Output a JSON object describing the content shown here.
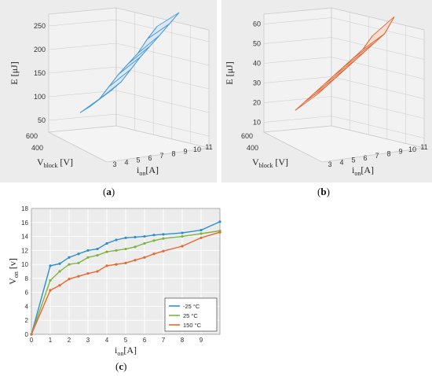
{
  "captions": {
    "a": "a",
    "b": "b",
    "c": "c"
  },
  "chart_data": [
    {
      "type": "surface",
      "panel": "a",
      "zlabel": "E [μJ]",
      "ylabel_main": "V",
      "ylabel_sub": "block",
      "ylabel_unit": " [V]",
      "xlabel_main": "i",
      "xlabel_sub": "on",
      "xlabel_unit": "[A]",
      "z_ticks": [
        "50",
        "100",
        "150",
        "200",
        "250"
      ],
      "y_ticks": [
        "600",
        "400"
      ],
      "x_ticks": [
        "3",
        "4",
        "5",
        "6",
        "7",
        "8",
        "9",
        "10",
        "11"
      ],
      "zlim": [
        25,
        260
      ],
      "color": "#4a9bd6",
      "fill": "#dbe8f4",
      "i_values": [
        3,
        4,
        5,
        6,
        7,
        8,
        9,
        10,
        11
      ],
      "energy_at_400V": [
        48,
        62,
        80,
        110,
        140,
        165,
        190,
        225,
        255
      ],
      "energy_at_600V": [
        60,
        76,
        96,
        126,
        156,
        182,
        208,
        235,
        262
      ]
    },
    {
      "type": "surface",
      "panel": "b",
      "zlabel": "E [μJ]",
      "ylabel_main": "V",
      "ylabel_sub": "block",
      "ylabel_unit": " [V]",
      "xlabel_main": "i",
      "xlabel_sub": "on",
      "xlabel_unit": "[A]",
      "z_ticks": [
        "10",
        "20",
        "30",
        "40",
        "50",
        "60"
      ],
      "y_ticks": [
        "600",
        "400"
      ],
      "x_ticks": [
        "3",
        "4",
        "5",
        "6",
        "7",
        "8",
        "9",
        "10",
        "11"
      ],
      "zlim": [
        5,
        62
      ],
      "color": "#e06a3a",
      "fill": "#f6ddd2",
      "i_values": [
        3,
        4,
        5,
        6,
        7,
        8,
        9,
        10,
        11
      ],
      "energy_at_400V": [
        12,
        17,
        22,
        27,
        32,
        37,
        42,
        47,
        55
      ],
      "energy_at_600V": [
        15,
        20,
        25,
        30,
        35,
        40,
        45,
        50,
        60
      ]
    },
    {
      "type": "line",
      "panel": "c",
      "xlabel_main": "i",
      "xlabel_sub": "on",
      "xlabel_unit": "[A]",
      "ylabel_main": "V",
      "ylabel_sub": "on",
      "ylabel_unit": " [v]",
      "xlim": [
        0,
        10
      ],
      "ylim": [
        0,
        18
      ],
      "x_ticks": [
        "0",
        "1",
        "2",
        "3",
        "4",
        "5",
        "6",
        "7",
        "8",
        "9"
      ],
      "y_ticks": [
        "0",
        "2",
        "4",
        "6",
        "8",
        "10",
        "12",
        "14",
        "16",
        "18"
      ],
      "grid": true,
      "legend": "bottom-right",
      "x": [
        0,
        1,
        1.5,
        2,
        2.5,
        3,
        3.5,
        4,
        4.5,
        5,
        5.5,
        6,
        6.5,
        7,
        8,
        9,
        10
      ],
      "series": [
        {
          "name": "-25 °C",
          "color": "#2e8fce",
          "values": [
            0,
            9.8,
            10.1,
            11.0,
            11.5,
            12.0,
            12.2,
            13.0,
            13.5,
            13.8,
            13.9,
            14.0,
            14.2,
            14.3,
            14.5,
            14.9,
            16.1
          ]
        },
        {
          "name": " 25 °C",
          "color": "#7cb342",
          "values": [
            0,
            7.7,
            9.0,
            10.0,
            10.2,
            11.0,
            11.3,
            11.8,
            12.0,
            12.2,
            12.5,
            13.0,
            13.4,
            13.7,
            14.0,
            14.4,
            14.8
          ]
        },
        {
          "name": "150 °C",
          "color": "#e8672f",
          "values": [
            0,
            6.3,
            7.0,
            7.9,
            8.3,
            8.7,
            9.0,
            9.8,
            10.0,
            10.2,
            10.6,
            11.0,
            11.5,
            11.9,
            12.6,
            13.8,
            14.6
          ]
        }
      ]
    }
  ]
}
